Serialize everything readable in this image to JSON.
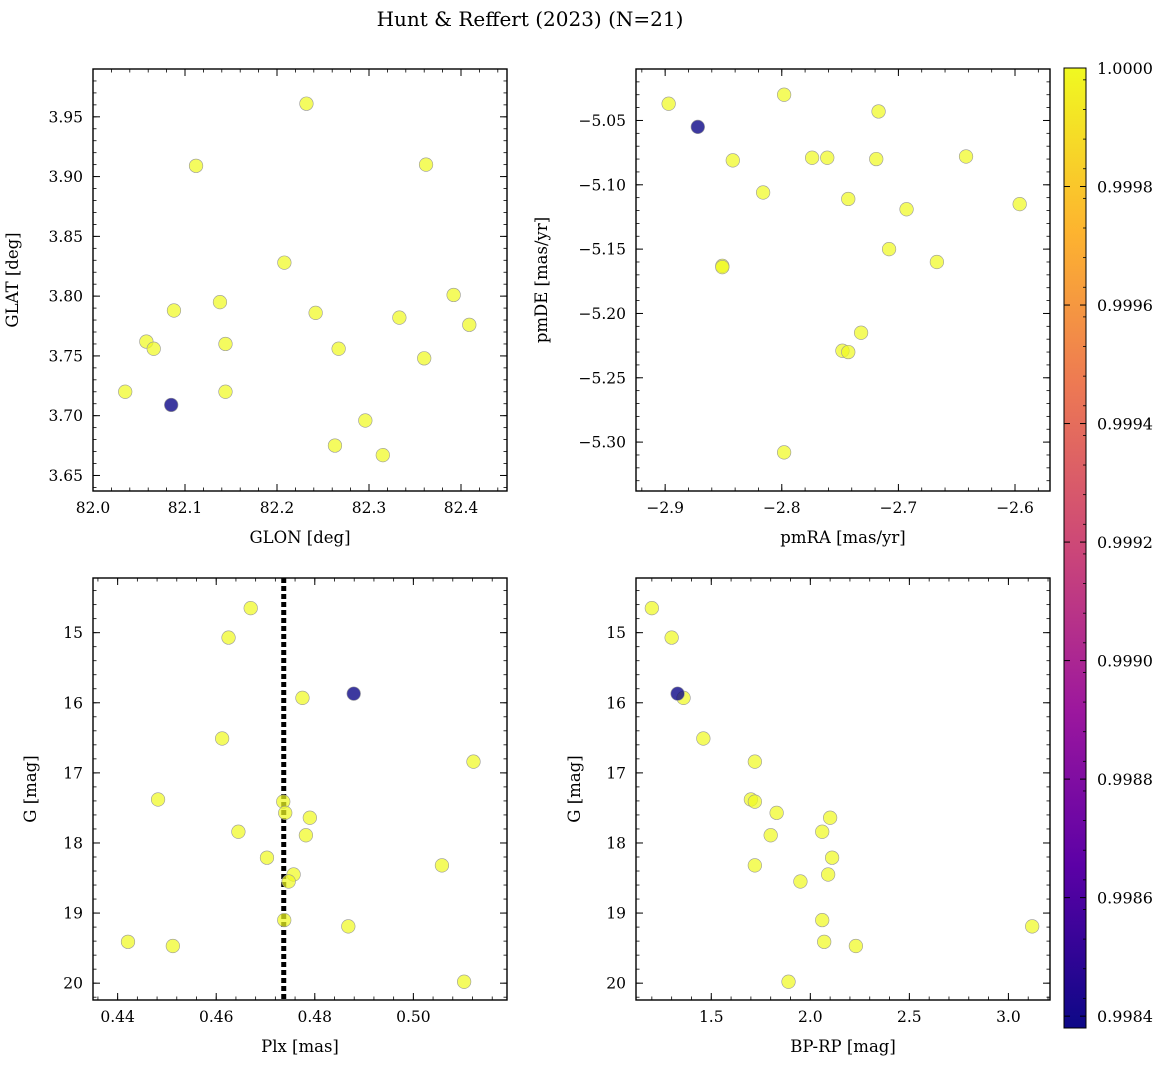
{
  "chart_data": {
    "title": "Hunt & Reffert (2023) (N=21)",
    "type": "scatter",
    "colorbar": {
      "range": [
        0.99838,
        1.0
      ],
      "ticks": [
        "1.0000",
        "0.9998",
        "0.9996",
        "0.9994",
        "0.9992",
        "0.9990",
        "0.9988",
        "0.9986",
        "0.9984"
      ],
      "colormap": "plasma",
      "colors": [
        "#0d0887",
        "#5c01a6",
        "#9c179e",
        "#cc4778",
        "#ed7953",
        "#fdb42f",
        "#f0f921"
      ]
    },
    "panels": [
      {
        "id": "glon-glat",
        "xlabel": "GLON [deg]",
        "ylabel": "GLAT [deg]",
        "xlim": [
          82.0,
          82.45
        ],
        "ylim": [
          3.637,
          3.99
        ],
        "y_inverted": false,
        "xticks": [
          "82.0",
          "82.1",
          "82.2",
          "82.3",
          "82.4"
        ],
        "yticks": [
          "3.65",
          "3.70",
          "3.75",
          "3.80",
          "3.85",
          "3.90",
          "3.95"
        ],
        "points": [
          {
            "x": 82.085,
            "y": 3.709,
            "c": 0.99838
          },
          {
            "x": 82.232,
            "y": 3.961,
            "c": 1.0
          },
          {
            "x": 82.112,
            "y": 3.909,
            "c": 1.0
          },
          {
            "x": 82.362,
            "y": 3.91,
            "c": 1.0
          },
          {
            "x": 82.208,
            "y": 3.828,
            "c": 1.0
          },
          {
            "x": 82.392,
            "y": 3.801,
            "c": 1.0
          },
          {
            "x": 82.138,
            "y": 3.795,
            "c": 1.0
          },
          {
            "x": 82.088,
            "y": 3.788,
            "c": 1.0
          },
          {
            "x": 82.242,
            "y": 3.786,
            "c": 1.0
          },
          {
            "x": 82.333,
            "y": 3.782,
            "c": 1.0
          },
          {
            "x": 82.409,
            "y": 3.776,
            "c": 1.0
          },
          {
            "x": 82.058,
            "y": 3.762,
            "c": 1.0
          },
          {
            "x": 82.144,
            "y": 3.76,
            "c": 1.0
          },
          {
            "x": 82.066,
            "y": 3.756,
            "c": 1.0
          },
          {
            "x": 82.267,
            "y": 3.756,
            "c": 1.0
          },
          {
            "x": 82.36,
            "y": 3.748,
            "c": 1.0
          },
          {
            "x": 82.035,
            "y": 3.72,
            "c": 1.0
          },
          {
            "x": 82.144,
            "y": 3.72,
            "c": 1.0
          },
          {
            "x": 82.296,
            "y": 3.696,
            "c": 1.0
          },
          {
            "x": 82.263,
            "y": 3.675,
            "c": 1.0
          },
          {
            "x": 82.315,
            "y": 3.667,
            "c": 1.0
          }
        ]
      },
      {
        "id": "pmra-pmde",
        "xlabel": "pmRA [mas/yr]",
        "ylabel": "pmDE [mas/yr]",
        "xlim": [
          -2.925,
          -2.57
        ],
        "ylim": [
          -5.338,
          -5.01
        ],
        "y_inverted": false,
        "xticks": [
          "−2.9",
          "−2.8",
          "−2.7",
          "−2.6"
        ],
        "yticks": [
          "−5.30",
          "−5.25",
          "−5.20",
          "−5.15",
          "−5.10",
          "−5.05"
        ],
        "points": [
          {
            "x": -2.872,
            "y": -5.055,
            "c": 0.99838
          },
          {
            "x": -2.897,
            "y": -5.037,
            "c": 1.0
          },
          {
            "x": -2.798,
            "y": -5.03,
            "c": 1.0
          },
          {
            "x": -2.717,
            "y": -5.043,
            "c": 1.0
          },
          {
            "x": -2.842,
            "y": -5.081,
            "c": 1.0
          },
          {
            "x": -2.774,
            "y": -5.079,
            "c": 1.0
          },
          {
            "x": -2.761,
            "y": -5.079,
            "c": 1.0
          },
          {
            "x": -2.719,
            "y": -5.08,
            "c": 1.0
          },
          {
            "x": -2.642,
            "y": -5.078,
            "c": 1.0
          },
          {
            "x": -2.816,
            "y": -5.106,
            "c": 1.0
          },
          {
            "x": -2.743,
            "y": -5.111,
            "c": 1.0
          },
          {
            "x": -2.693,
            "y": -5.119,
            "c": 1.0
          },
          {
            "x": -2.596,
            "y": -5.115,
            "c": 1.0
          },
          {
            "x": -2.708,
            "y": -5.15,
            "c": 1.0
          },
          {
            "x": -2.667,
            "y": -5.16,
            "c": 1.0
          },
          {
            "x": -2.851,
            "y": -5.163,
            "c": 1.0
          },
          {
            "x": -2.851,
            "y": -5.164,
            "c": 1.0
          },
          {
            "x": -2.732,
            "y": -5.215,
            "c": 1.0
          },
          {
            "x": -2.748,
            "y": -5.229,
            "c": 1.0
          },
          {
            "x": -2.743,
            "y": -5.23,
            "c": 1.0
          },
          {
            "x": -2.798,
            "y": -5.308,
            "c": 1.0
          }
        ]
      },
      {
        "id": "plx-g",
        "xlabel": "Plx [mas]",
        "ylabel": "G [mag]",
        "xlim": [
          0.435,
          0.519
        ],
        "ylim": [
          20.24,
          14.22
        ],
        "y_inverted": true,
        "xticks": [
          "0.44",
          "0.46",
          "0.48",
          "0.50"
        ],
        "yticks": [
          "15",
          "16",
          "17",
          "18",
          "19",
          "20"
        ],
        "vline": {
          "x": 0.4737,
          "style": "dotted"
        },
        "points": [
          {
            "x": 0.4879,
            "y": 15.87,
            "c": 0.99838
          },
          {
            "x": 0.467,
            "y": 14.65,
            "c": 1.0
          },
          {
            "x": 0.4625,
            "y": 15.07,
            "c": 1.0
          },
          {
            "x": 0.4775,
            "y": 15.93,
            "c": 1.0
          },
          {
            "x": 0.4612,
            "y": 16.51,
            "c": 1.0
          },
          {
            "x": 0.5122,
            "y": 16.84,
            "c": 1.0
          },
          {
            "x": 0.4482,
            "y": 17.38,
            "c": 1.0
          },
          {
            "x": 0.4736,
            "y": 17.41,
            "c": 1.0
          },
          {
            "x": 0.474,
            "y": 17.57,
            "c": 1.0
          },
          {
            "x": 0.479,
            "y": 17.64,
            "c": 1.0
          },
          {
            "x": 0.4645,
            "y": 17.84,
            "c": 1.0
          },
          {
            "x": 0.4782,
            "y": 17.89,
            "c": 1.0
          },
          {
            "x": 0.4703,
            "y": 18.21,
            "c": 1.0
          },
          {
            "x": 0.5058,
            "y": 18.32,
            "c": 1.0
          },
          {
            "x": 0.4757,
            "y": 18.45,
            "c": 1.0
          },
          {
            "x": 0.4747,
            "y": 18.55,
            "c": 1.0
          },
          {
            "x": 0.4738,
            "y": 19.1,
            "c": 1.0
          },
          {
            "x": 0.4868,
            "y": 19.19,
            "c": 1.0
          },
          {
            "x": 0.4421,
            "y": 19.41,
            "c": 1.0
          },
          {
            "x": 0.4512,
            "y": 19.47,
            "c": 1.0
          },
          {
            "x": 0.5103,
            "y": 19.98,
            "c": 1.0
          }
        ]
      },
      {
        "id": "bprp-g",
        "xlabel": "BP-RP [mag]",
        "ylabel": "G [mag]",
        "xlim": [
          1.12,
          3.21
        ],
        "ylim": [
          20.24,
          14.22
        ],
        "y_inverted": true,
        "xticks": [
          "1.5",
          "2.0",
          "2.5",
          "3.0"
        ],
        "yticks": [
          "15",
          "16",
          "17",
          "18",
          "19",
          "20"
        ],
        "points": [
          {
            "x": 1.33,
            "y": 15.87,
            "c": 0.99838
          },
          {
            "x": 1.2,
            "y": 14.65,
            "c": 1.0
          },
          {
            "x": 1.3,
            "y": 15.07,
            "c": 1.0
          },
          {
            "x": 1.36,
            "y": 15.93,
            "c": 1.0
          },
          {
            "x": 1.46,
            "y": 16.51,
            "c": 1.0
          },
          {
            "x": 1.72,
            "y": 16.84,
            "c": 1.0
          },
          {
            "x": 1.7,
            "y": 17.38,
            "c": 1.0
          },
          {
            "x": 1.72,
            "y": 17.41,
            "c": 1.0
          },
          {
            "x": 1.83,
            "y": 17.57,
            "c": 1.0
          },
          {
            "x": 2.1,
            "y": 17.64,
            "c": 1.0
          },
          {
            "x": 2.06,
            "y": 17.84,
            "c": 1.0
          },
          {
            "x": 1.8,
            "y": 17.89,
            "c": 1.0
          },
          {
            "x": 2.11,
            "y": 18.21,
            "c": 1.0
          },
          {
            "x": 1.72,
            "y": 18.32,
            "c": 1.0
          },
          {
            "x": 2.09,
            "y": 18.45,
            "c": 1.0
          },
          {
            "x": 1.95,
            "y": 18.55,
            "c": 1.0
          },
          {
            "x": 2.06,
            "y": 19.1,
            "c": 1.0
          },
          {
            "x": 3.12,
            "y": 19.19,
            "c": 1.0
          },
          {
            "x": 2.07,
            "y": 19.41,
            "c": 1.0
          },
          {
            "x": 2.23,
            "y": 19.47,
            "c": 1.0
          },
          {
            "x": 1.89,
            "y": 19.98,
            "c": 1.0
          }
        ]
      }
    ]
  }
}
